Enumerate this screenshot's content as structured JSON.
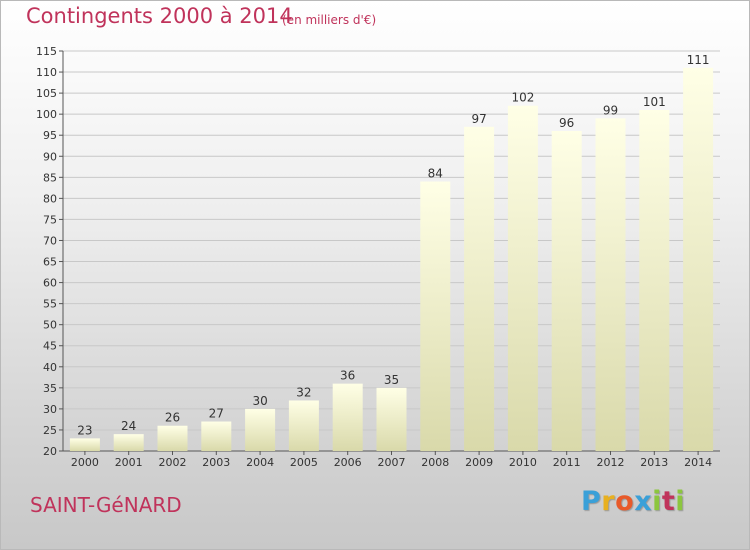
{
  "header": {
    "title": "Contingents 2000 à 2014",
    "unit": "(en milliers d'€)"
  },
  "footer": {
    "commune": "SAINT-GéNARD",
    "logo_letters": [
      "P",
      "r",
      "o",
      "x",
      "i",
      "t",
      "i"
    ],
    "logo_colors": [
      "#3aa0d8",
      "#e8b020",
      "#e85a2a",
      "#3aa0d8",
      "#8cc63f",
      "#c0335b",
      "#8cc63f"
    ]
  },
  "colors": {
    "title": "#c0335b",
    "bar_top": "#ffffe0",
    "bar_bottom": "#d8d8a8",
    "grid": "#c8c8c8"
  },
  "chart_data": {
    "type": "bar",
    "title": "Contingents 2000 à 2014",
    "subtitle": "(en milliers d'€)",
    "categories": [
      "2000",
      "2001",
      "2002",
      "2003",
      "2004",
      "2005",
      "2006",
      "2007",
      "2008",
      "2009",
      "2010",
      "2011",
      "2012",
      "2013",
      "2014"
    ],
    "values": [
      23,
      24,
      26,
      27,
      30,
      32,
      36,
      35,
      84,
      97,
      102,
      96,
      99,
      101,
      111
    ],
    "ylim": [
      20,
      115
    ],
    "yticks": [
      20,
      25,
      30,
      35,
      40,
      45,
      50,
      55,
      60,
      65,
      70,
      75,
      80,
      85,
      90,
      95,
      100,
      105,
      110,
      115
    ],
    "grid": true,
    "xlabel": "",
    "ylabel": ""
  }
}
